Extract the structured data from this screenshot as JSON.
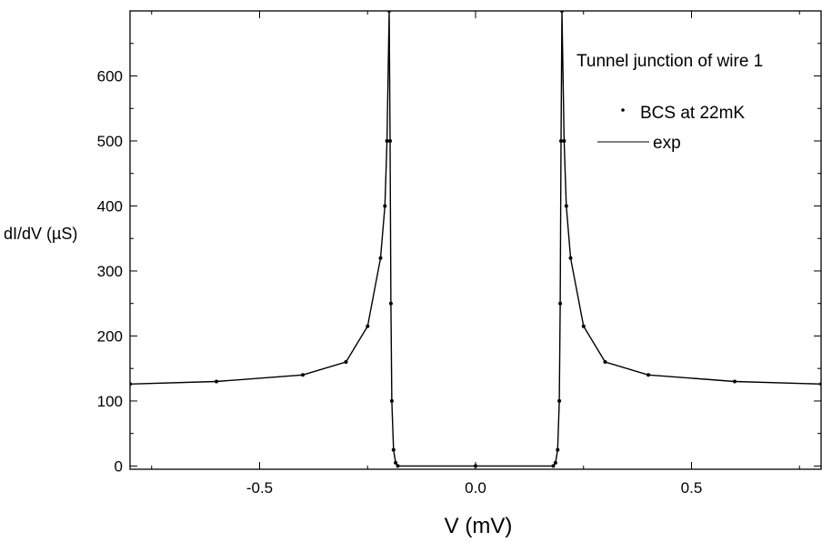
{
  "chart_data": {
    "type": "line",
    "title": "",
    "xlabel": "V (mV)",
    "ylabel": "dI/dV (µS)",
    "xlim": [
      -0.8,
      0.8
    ],
    "ylim": [
      -5,
      700
    ],
    "x_ticks": [
      -0.5,
      0.0,
      0.5
    ],
    "x_tick_labels": [
      "-0.5",
      "0.0",
      "0.5"
    ],
    "y_ticks": [
      0,
      100,
      200,
      300,
      400,
      500,
      600
    ],
    "y_tick_labels": [
      "0",
      "100",
      "200",
      "300",
      "400",
      "500",
      "600"
    ],
    "grid": false,
    "legend": {
      "placement": "top-right",
      "title": "Tunnel junction of wire 1",
      "entries": [
        {
          "label": "BCS at 22mK",
          "marker": "dot"
        },
        {
          "label": "exp",
          "marker": "line"
        }
      ]
    },
    "series": [
      {
        "name": "exp",
        "style": "line",
        "x": [
          -0.8,
          -0.6,
          -0.4,
          -0.3,
          -0.25,
          -0.22,
          -0.21,
          -0.205,
          -0.2,
          -0.198,
          -0.196,
          -0.194,
          -0.19,
          -0.185,
          -0.18,
          0.0,
          0.18,
          0.185,
          0.19,
          0.194,
          0.196,
          0.198,
          0.2,
          0.205,
          0.21,
          0.22,
          0.25,
          0.3,
          0.4,
          0.6,
          0.8
        ],
        "y": [
          126,
          130,
          140,
          160,
          215,
          320,
          400,
          500,
          700,
          500,
          250,
          100,
          25,
          5,
          0,
          0,
          0,
          5,
          25,
          100,
          250,
          500,
          700,
          500,
          400,
          320,
          215,
          160,
          140,
          130,
          126
        ]
      },
      {
        "name": "BCS at 22mK",
        "style": "dots",
        "x": [
          -0.8,
          -0.6,
          -0.4,
          -0.3,
          -0.25,
          -0.22,
          -0.21,
          -0.205,
          -0.2,
          -0.198,
          -0.196,
          -0.194,
          -0.19,
          -0.185,
          -0.18,
          0.0,
          0.18,
          0.185,
          0.19,
          0.194,
          0.196,
          0.198,
          0.2,
          0.205,
          0.21,
          0.22,
          0.25,
          0.3,
          0.4,
          0.6,
          0.8
        ],
        "y": [
          126,
          130,
          140,
          160,
          215,
          320,
          400,
          500,
          700,
          500,
          250,
          100,
          25,
          5,
          0,
          0,
          0,
          5,
          25,
          100,
          250,
          500,
          700,
          500,
          400,
          320,
          215,
          160,
          140,
          130,
          126
        ]
      }
    ]
  }
}
